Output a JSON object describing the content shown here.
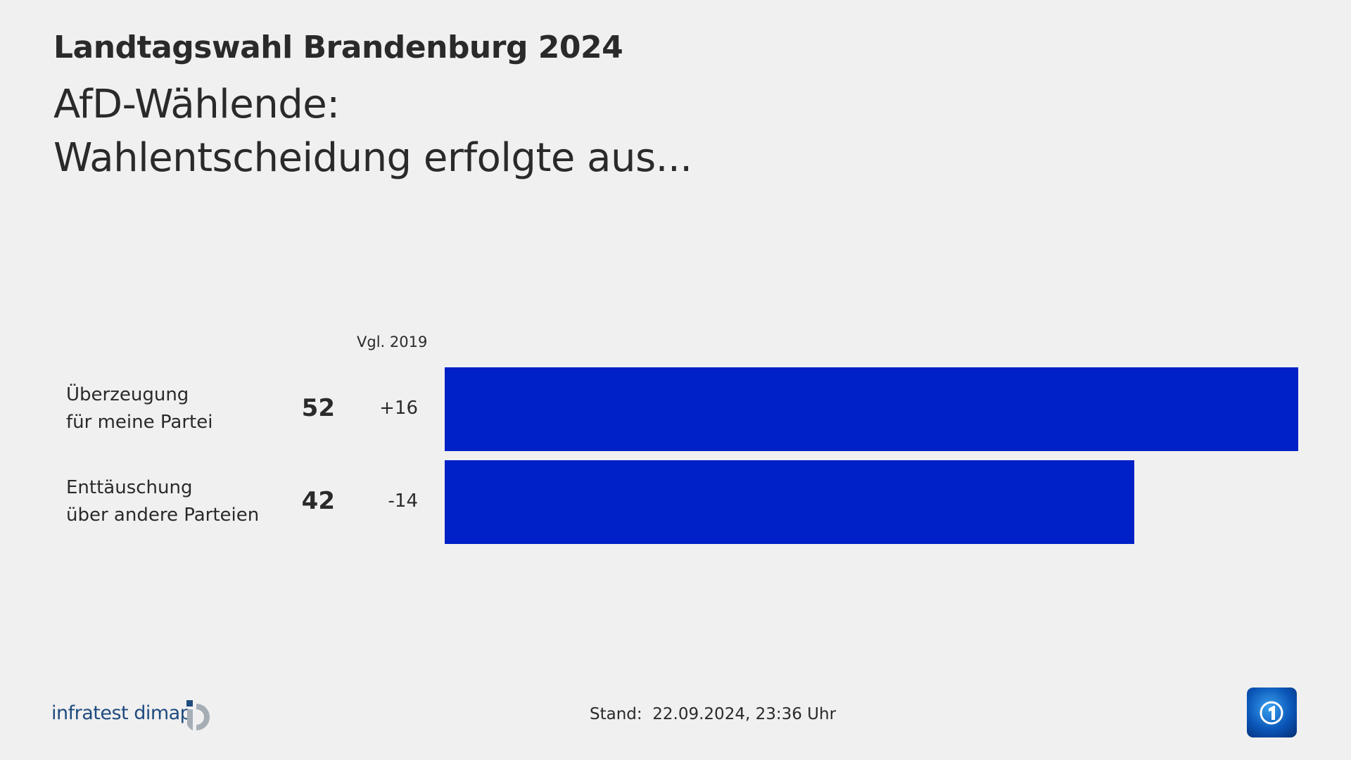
{
  "header": {
    "title": "Landtagswahl Brandenburg 2024",
    "subtitle_line1": "AfD-Wählende:",
    "subtitle_line2": "Wahlentscheidung erfolgte aus..."
  },
  "chart_data": {
    "type": "bar",
    "orientation": "horizontal",
    "comparison_header": "Vgl. 2019",
    "categories": [
      "Überzeugung für meine Partei",
      "Enttäuschung über andere Parteien"
    ],
    "category_lines": [
      [
        "Überzeugung",
        "für meine Partei"
      ],
      [
        "Enttäuschung",
        "über andere Parteien"
      ]
    ],
    "values": [
      52,
      42
    ],
    "value_labels": [
      "52",
      "42"
    ],
    "changes": [
      "+16",
      "-14"
    ],
    "bar_color": "#0020c8",
    "xlim": [
      0,
      52
    ],
    "grid": false
  },
  "footer": {
    "stand_label": "Stand:",
    "stand_value": "22.09.2024, 23:36 Uhr",
    "source_logo": "infratest dimap",
    "broadcaster_logo": "tagesschau"
  }
}
